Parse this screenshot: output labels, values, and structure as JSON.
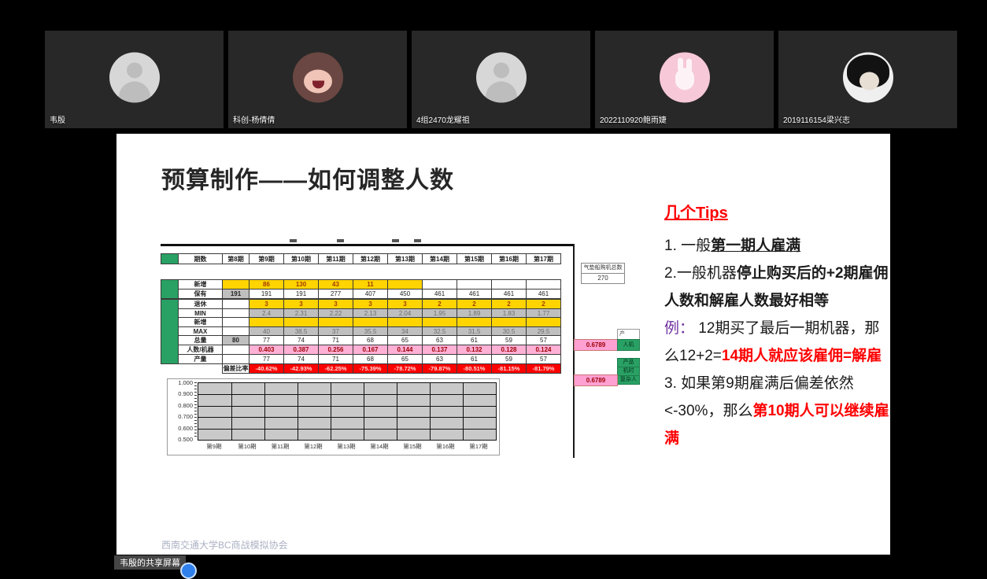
{
  "meeting": {
    "participants": [
      {
        "name": "韦殷",
        "avatar": "generic-person"
      },
      {
        "name": "科创-杨倩倩",
        "avatar": "anime-girl"
      },
      {
        "name": "4组2470龙耀祖",
        "avatar": "generic-person"
      },
      {
        "name": "2022110920鲍雨婕",
        "avatar": "pink-bunny"
      },
      {
        "name": "2019116154梁兴志",
        "avatar": "bw-anime"
      }
    ],
    "share_banner": "韦殷的共享屏幕"
  },
  "slide": {
    "title": "预算制作——如何调整人数",
    "footer": "西南交通大学BC商战模拟协会",
    "table": {
      "header": {
        "label": "期数",
        "cols": [
          "第8期",
          "第9期",
          "第10期",
          "第11期",
          "第12期",
          "第13期",
          "第14期",
          "第15期",
          "第16期",
          "第17期"
        ]
      },
      "section_b": [
        {
          "label": "新增",
          "cells": [
            [
              "",
              "y"
            ],
            [
              "86",
              "y"
            ],
            [
              "130",
              "y"
            ],
            [
              "43",
              "y"
            ],
            [
              "11",
              "y"
            ],
            [
              "",
              "y"
            ],
            [
              "",
              ""
            ],
            [
              "",
              ""
            ],
            [
              "",
              ""
            ],
            [
              "",
              ""
            ]
          ]
        },
        {
          "label": "保有",
          "cells": [
            [
              "191",
              "gb"
            ],
            [
              "191",
              ""
            ],
            [
              "191",
              ""
            ],
            [
              "277",
              ""
            ],
            [
              "407",
              ""
            ],
            [
              "450",
              ""
            ],
            [
              "461",
              ""
            ],
            [
              "461",
              ""
            ],
            [
              "461",
              ""
            ],
            [
              "461",
              ""
            ]
          ]
        }
      ],
      "section_c": [
        {
          "label": "退休",
          "cells": [
            [
              "",
              ""
            ],
            [
              "3",
              "y"
            ],
            [
              "3",
              "y"
            ],
            [
              "3",
              "y"
            ],
            [
              "3",
              "y"
            ],
            [
              "3",
              "y"
            ],
            [
              "2",
              "y"
            ],
            [
              "2",
              "y"
            ],
            [
              "2",
              "y"
            ],
            [
              "2",
              "y"
            ]
          ]
        },
        {
          "label": "MIN",
          "cells": [
            [
              "",
              ""
            ],
            [
              "2.4",
              "gm"
            ],
            [
              "2.31",
              "gm"
            ],
            [
              "2.22",
              "gm"
            ],
            [
              "2.13",
              "gm"
            ],
            [
              "2.04",
              "gm"
            ],
            [
              "1.95",
              "gm"
            ],
            [
              "1.89",
              "gm"
            ],
            [
              "1.83",
              "gm"
            ],
            [
              "1.77",
              "gm"
            ]
          ]
        },
        {
          "label": "新增",
          "cells": [
            [
              "",
              ""
            ],
            [
              "",
              "y"
            ],
            [
              "",
              "y"
            ],
            [
              "",
              "y"
            ],
            [
              "",
              "y"
            ],
            [
              "",
              "y"
            ],
            [
              "",
              "y"
            ],
            [
              "",
              "y"
            ],
            [
              "",
              "y"
            ],
            [
              "",
              "y"
            ]
          ]
        },
        {
          "label": "MAX",
          "cells": [
            [
              "",
              ""
            ],
            [
              "40",
              "gm"
            ],
            [
              "38.5",
              "gm"
            ],
            [
              "37",
              "gm"
            ],
            [
              "35.5",
              "gm"
            ],
            [
              "34",
              "gm"
            ],
            [
              "32.5",
              "gm"
            ],
            [
              "31.5",
              "gm"
            ],
            [
              "30.5",
              "gm"
            ],
            [
              "29.5",
              "gm"
            ]
          ]
        },
        {
          "label": "总量",
          "cells": [
            [
              "80",
              "gb"
            ],
            [
              "77",
              ""
            ],
            [
              "74",
              ""
            ],
            [
              "71",
              ""
            ],
            [
              "68",
              ""
            ],
            [
              "65",
              ""
            ],
            [
              "63",
              ""
            ],
            [
              "61",
              ""
            ],
            [
              "59",
              ""
            ],
            [
              "57",
              ""
            ]
          ]
        },
        {
          "label": "人数/机器",
          "cells": [
            [
              "",
              ""
            ],
            [
              "0.403",
              "p"
            ],
            [
              "0.387",
              "p"
            ],
            [
              "0.256",
              "p"
            ],
            [
              "0.167",
              "p"
            ],
            [
              "0.144",
              "p"
            ],
            [
              "0.137",
              "p"
            ],
            [
              "0.132",
              "p"
            ],
            [
              "0.128",
              "p"
            ],
            [
              "0.124",
              "p"
            ]
          ]
        },
        {
          "label": "产量",
          "cells": [
            [
              "",
              ""
            ],
            [
              "77",
              ""
            ],
            [
              "74",
              ""
            ],
            [
              "71",
              ""
            ],
            [
              "68",
              ""
            ],
            [
              "65",
              ""
            ],
            [
              "63",
              ""
            ],
            [
              "61",
              ""
            ],
            [
              "59",
              ""
            ],
            [
              "57",
              ""
            ]
          ]
        }
      ],
      "deviation": {
        "label": "偏差比率",
        "values": [
          "-40.62%",
          "-42.93%",
          "-62.25%",
          "-75.39%",
          "-78.72%",
          "-79.87%",
          "-80.51%",
          "-81.15%",
          "-81.79%"
        ]
      }
    },
    "machine_box": {
      "label": "气垫船购机总数",
      "value": "270"
    },
    "annotations": {
      "target_ratio_1": "0.6789",
      "target_ratio_2": "0.6789",
      "ratio_label": "人机",
      "partial_header": "产",
      "green_group": [
        "产品",
        "机时",
        "复杂人"
      ]
    },
    "tips": {
      "heading": "几个Tips",
      "paragraphs": [
        [
          {
            "t": "1. 一般",
            "s": "n"
          },
          {
            "t": "第一期人雇满",
            "s": "bu"
          }
        ],
        [
          {
            "t": "2.一般机器",
            "s": "n"
          },
          {
            "t": "停止购买后的+2期雇佣人数和解雇人数最好相等",
            "s": "b"
          }
        ],
        [
          {
            "t": "例：",
            "s": "v"
          },
          {
            "t": " 12期买了最后一期机器，那么12+2=",
            "s": "n"
          },
          {
            "t": "14期人就应该雇佣=解雇",
            "s": "rb"
          }
        ],
        [
          {
            "t": "3. 如果第9期雇满后偏差依然<-30%，那么",
            "s": "n"
          },
          {
            "t": "第10期人可以继续雇满",
            "s": "rb"
          }
        ]
      ]
    }
  },
  "chart_data": {
    "type": "line",
    "title": "",
    "categories": [
      "第9期",
      "第10期",
      "第11期",
      "第12期",
      "第13期",
      "第14期",
      "第15期",
      "第16期",
      "第17期"
    ],
    "series": [],
    "ylim": [
      0.5,
      1.0
    ],
    "yticks": [
      "1.000",
      "0.900",
      "0.800",
      "0.700",
      "0.600",
      "0.500"
    ],
    "grid": true,
    "legend": false
  },
  "colors": {
    "green_cell": "#29a164",
    "yellow_cell": "#ffd400",
    "pink_cell": "#ffb0d5",
    "red_row": "#fe0000",
    "tip_red": "#fe0000",
    "tip_purple": "#7030a0"
  }
}
